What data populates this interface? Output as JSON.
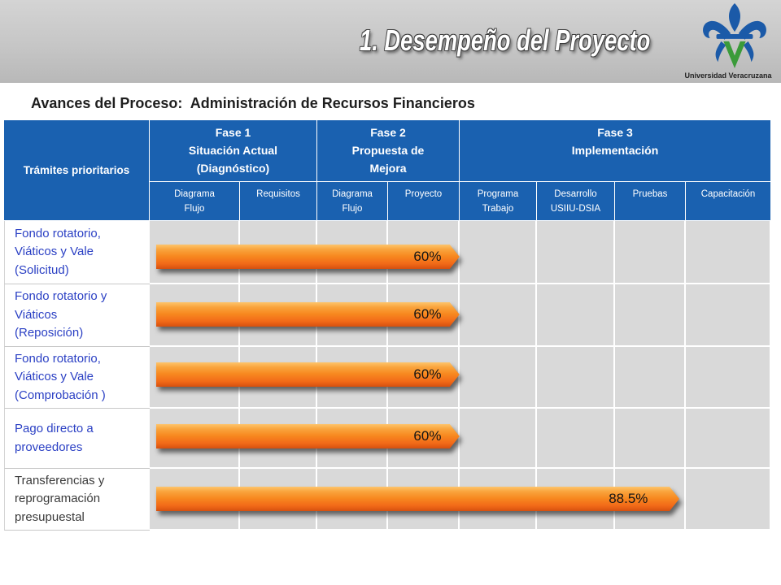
{
  "header": {
    "title": "1. Desempeño del Proyecto",
    "logo_icon": "university-fleur-de-lis-logo",
    "logo_text": "Universidad Veracruzana"
  },
  "subtitle": "Avances del Proceso:  Administración de Recursos Financieros",
  "colors": {
    "header_blue": "#1a61b0",
    "cell_gray": "#d9d9d9",
    "progress_orange": "#f7881f",
    "title_band_gray": "#c6c6c6"
  },
  "table": {
    "first_col_header": "Trámites prioritarios",
    "phases": [
      {
        "lines": [
          "Fase 1",
          "Situación Actual",
          "(Diagnóstico)"
        ]
      },
      {
        "lines": [
          "Fase 2",
          "Propuesta de",
          "Mejora"
        ]
      },
      {
        "lines": [
          "Fase 3",
          "Implementación"
        ]
      }
    ],
    "subcolumns": [
      {
        "lines": [
          "Diagrama",
          "Flujo"
        ]
      },
      {
        "lines": [
          "Requisitos"
        ]
      },
      {
        "lines": [
          "Diagrama",
          "Flujo"
        ]
      },
      {
        "lines": [
          "Proyecto"
        ]
      },
      {
        "lines": [
          "Programa",
          "Trabajo"
        ]
      },
      {
        "lines": [
          "Desarrollo",
          "USIIU-DSIA"
        ]
      },
      {
        "lines": [
          "Pruebas"
        ]
      },
      {
        "lines": [
          "Capacitación"
        ]
      }
    ],
    "rows": [
      {
        "lines": [
          "Fondo rotatorio,",
          "Viáticos y Vale",
          "(Solicitud)"
        ],
        "label_color": "#2b40c4",
        "progress_label": "60%"
      },
      {
        "lines": [
          "Fondo rotatorio y",
          "Viáticos",
          "(Reposición)"
        ],
        "label_color": "#2b40c4",
        "progress_label": "60%"
      },
      {
        "lines": [
          "Fondo rotatorio,",
          "Viáticos y Vale",
          "(Comprobación )"
        ],
        "label_color": "#2b40c4",
        "progress_label": "60%"
      },
      {
        "lines": [
          "Pago directo a",
          "proveedores"
        ],
        "label_color": "#2b40c4",
        "progress_label": "60%"
      },
      {
        "lines": [
          "Transferencias y",
          "reprogramación",
          "presupuestal"
        ],
        "label_color": "#3a3a3a",
        "progress_label": "88.5%"
      }
    ]
  }
}
